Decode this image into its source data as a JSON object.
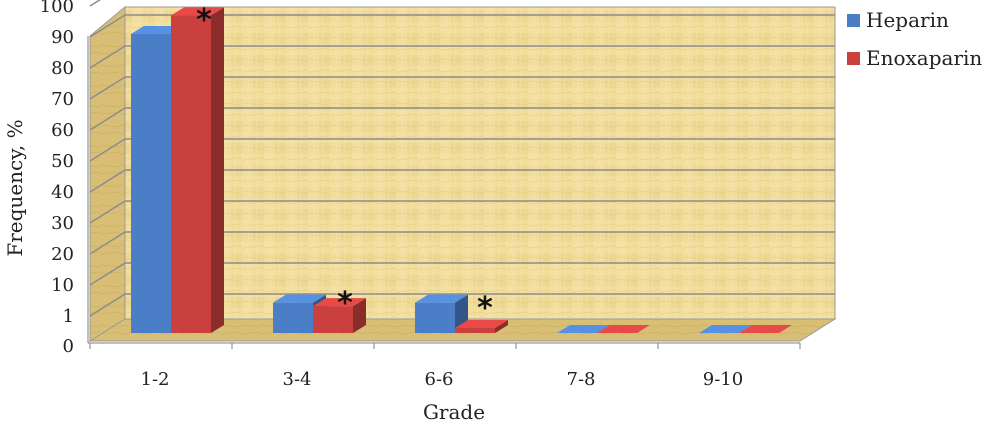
{
  "chart_data": {
    "type": "bar",
    "categories": [
      "1-2",
      "3-4",
      "6-6",
      "7-8",
      "9-10"
    ],
    "series": [
      {
        "name": "Heparin",
        "values": [
          90,
          4,
          4,
          0,
          0
        ],
        "color": "#4a7ec6"
      },
      {
        "name": "Enoxaparin",
        "values": [
          96,
          3,
          0.5,
          0,
          0
        ],
        "color": "#c9403e"
      }
    ],
    "y_ticks": [
      "0",
      "1",
      "10",
      "20",
      "30",
      "40",
      "50",
      "60",
      "70",
      "80",
      "90",
      "100"
    ],
    "annotations": [
      "*",
      "*",
      "*"
    ],
    "xlabel": "Grade",
    "ylabel": "Frequency, %",
    "ylim": [
      0,
      100
    ],
    "grid": true,
    "legend_position": "top-right",
    "style": "3d-bar"
  }
}
